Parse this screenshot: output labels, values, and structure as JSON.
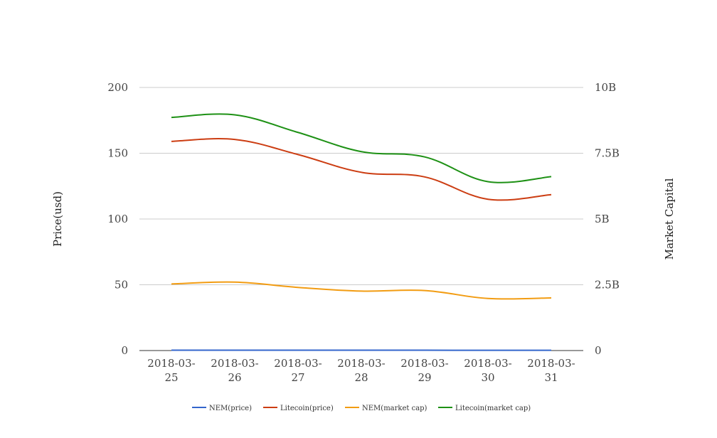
{
  "chart_data": {
    "type": "line",
    "x": [
      "2018-03-25",
      "2018-03-26",
      "2018-03-27",
      "2018-03-28",
      "2018-03-29",
      "2018-03-30",
      "2018-03-31"
    ],
    "x_tick_labels": [
      [
        "2018-03-",
        "25"
      ],
      [
        "2018-03-",
        "26"
      ],
      [
        "2018-03-",
        "27"
      ],
      [
        "2018-03-",
        "28"
      ],
      [
        "2018-03-",
        "29"
      ],
      [
        "2018-03-",
        "30"
      ],
      [
        "2018-03-",
        "31"
      ]
    ],
    "ylabel": "Price(usd)",
    "y2label": "Market Capital",
    "ylim": [
      0,
      200
    ],
    "y2lim": [
      0,
      10000000000
    ],
    "y_ticks": [
      "0",
      "50",
      "100",
      "150",
      "200"
    ],
    "y2_ticks": [
      "0",
      "2.5B",
      "5B",
      "7.5B",
      "10B"
    ],
    "grid": true,
    "legend_position": "bottom",
    "series": [
      {
        "name": "NEM(price)",
        "axis": "left",
        "color": "#3366cc",
        "values": [
          0.26,
          0.26,
          0.25,
          0.24,
          0.24,
          0.21,
          0.21
        ]
      },
      {
        "name": "Litecoin(price)",
        "axis": "left",
        "color": "#cc3d12",
        "values": [
          159,
          160.5,
          149,
          135.5,
          132,
          115,
          118.5
        ]
      },
      {
        "name": "NEM(market cap)",
        "axis": "right",
        "color": "#f29c12",
        "values": [
          2530000000,
          2600000000,
          2400000000,
          2260000000,
          2280000000,
          1980000000,
          2000000000
        ]
      },
      {
        "name": "Litecoin(market cap)",
        "axis": "right",
        "color": "#1e9115",
        "values": [
          8860000000,
          8960000000,
          8290000000,
          7560000000,
          7360000000,
          6420000000,
          6610000000
        ]
      }
    ]
  }
}
